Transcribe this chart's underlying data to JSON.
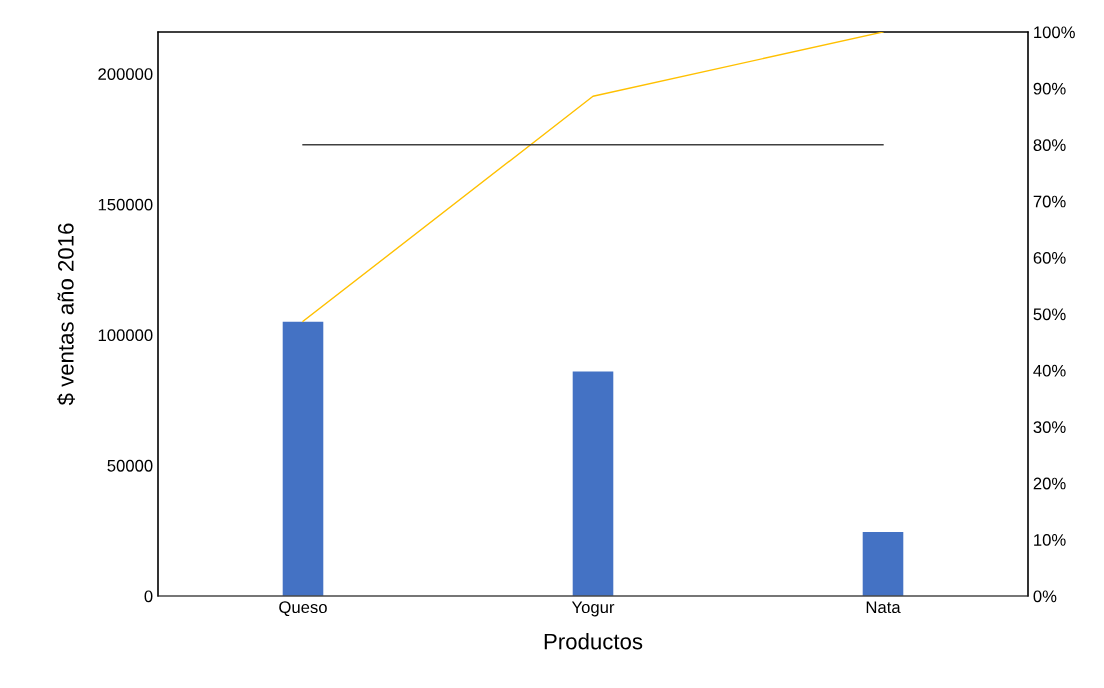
{
  "chart_data": {
    "type": "bar",
    "xlabel": "Productos",
    "ylabel": "$ ventas año 2016",
    "categories": [
      "Queso",
      "Yogur",
      "Nata"
    ],
    "series": [
      {
        "color": "#4472c4",
        "values": [
          105000,
          86000,
          24500
        ]
      },
      {
        "type": "line",
        "axis": "y2",
        "color": "#ffc000",
        "values": [
          48.7,
          88.6,
          100
        ]
      },
      {
        "type": "line",
        "axis": "y2",
        "color": "#404040",
        "values": [
          80,
          80,
          80
        ]
      }
    ],
    "ylim": [
      0,
      216000
    ],
    "yticks": [
      0,
      50000,
      100000,
      150000,
      200000
    ],
    "y2lim": [
      0,
      100
    ],
    "y2ticks": [
      {
        "value": 0,
        "label": "0%"
      },
      {
        "value": 10,
        "label": "10%"
      },
      {
        "value": 20,
        "label": "20%"
      },
      {
        "value": 30,
        "label": "30%"
      },
      {
        "value": 40,
        "label": "40%"
      },
      {
        "value": 50,
        "label": "50%"
      },
      {
        "value": 60,
        "label": "60%"
      },
      {
        "value": 70,
        "label": "70%"
      },
      {
        "value": 80,
        "label": "80%"
      },
      {
        "value": 90,
        "label": "90%"
      },
      {
        "value": 100,
        "label": "100%"
      }
    ],
    "grid": false,
    "legend": false
  }
}
